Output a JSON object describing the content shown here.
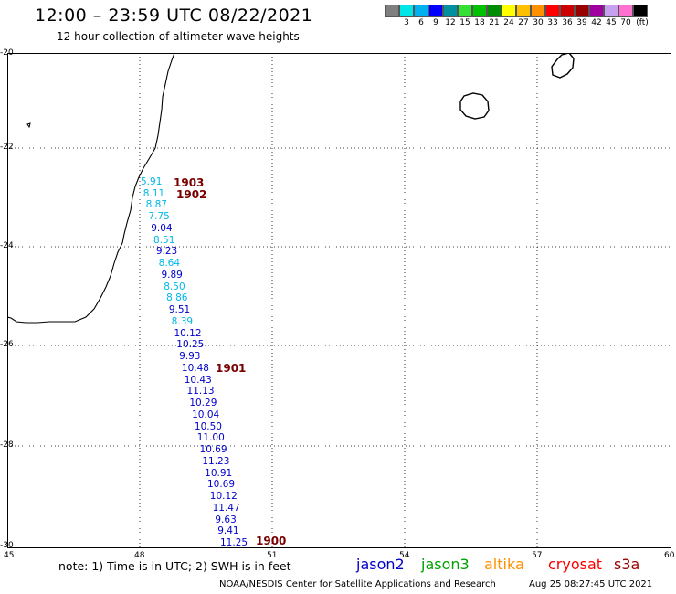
{
  "header": {
    "title": "12:00 – 23:59 UTC 08/22/2021",
    "subtitle": "12 hour collection of altimeter wave heights"
  },
  "legend": {
    "swatches": [
      {
        "color": "#7f7f7f",
        "label": ""
      },
      {
        "color": "#00e5e5",
        "label": "3"
      },
      {
        "color": "#00b0f0",
        "label": "6"
      },
      {
        "color": "#0000ff",
        "label": "9"
      },
      {
        "color": "#0090a0",
        "label": "12"
      },
      {
        "color": "#33e033",
        "label": "15"
      },
      {
        "color": "#00c000",
        "label": "18"
      },
      {
        "color": "#008c00",
        "label": "21"
      },
      {
        "color": "#ffff00",
        "label": "24"
      },
      {
        "color": "#ffc000",
        "label": "27"
      },
      {
        "color": "#ff9000",
        "label": "30"
      },
      {
        "color": "#ff0000",
        "label": "33"
      },
      {
        "color": "#cc0000",
        "label": "36"
      },
      {
        "color": "#990000",
        "label": "39"
      },
      {
        "color": "#a000a0",
        "label": "42"
      },
      {
        "color": "#c8a0f0",
        "label": "45"
      },
      {
        "color": "#ff70d0",
        "label": "70"
      },
      {
        "color": "#000000",
        "label": "(ft)"
      }
    ]
  },
  "axes": {
    "lat_ticks": [
      "-20",
      "-22",
      "-24",
      "-26",
      "-28",
      "-30"
    ],
    "lon_ticks": [
      "45",
      "48",
      "51",
      "54",
      "57",
      "60"
    ]
  },
  "colors": {
    "light": "#00b8e8",
    "dark": "#0000cc",
    "time": "#7a0000",
    "grid": "#000000"
  },
  "wave_heights": [
    {
      "value": "5.91",
      "tone": "light"
    },
    {
      "value": "8.11",
      "tone": "light"
    },
    {
      "value": "8.87",
      "tone": "light"
    },
    {
      "value": "7.75",
      "tone": "light"
    },
    {
      "value": "9.04",
      "tone": "dark"
    },
    {
      "value": "8.51",
      "tone": "light"
    },
    {
      "value": "9.23",
      "tone": "dark"
    },
    {
      "value": "8.64",
      "tone": "light"
    },
    {
      "value": "9.89",
      "tone": "dark"
    },
    {
      "value": "8.50",
      "tone": "light"
    },
    {
      "value": "8.86",
      "tone": "light"
    },
    {
      "value": "9.51",
      "tone": "dark"
    },
    {
      "value": "8.39",
      "tone": "light"
    },
    {
      "value": "10.12",
      "tone": "dark"
    },
    {
      "value": "10.25",
      "tone": "dark"
    },
    {
      "value": "9.93",
      "tone": "dark"
    },
    {
      "value": "10.48",
      "tone": "dark"
    },
    {
      "value": "10.43",
      "tone": "dark"
    },
    {
      "value": "11.13",
      "tone": "dark"
    },
    {
      "value": "10.29",
      "tone": "dark"
    },
    {
      "value": "10.04",
      "tone": "dark"
    },
    {
      "value": "10.50",
      "tone": "dark"
    },
    {
      "value": "11.00",
      "tone": "dark"
    },
    {
      "value": "10.69",
      "tone": "dark"
    },
    {
      "value": "11.23",
      "tone": "dark"
    },
    {
      "value": "10.91",
      "tone": "dark"
    },
    {
      "value": "10.69",
      "tone": "dark"
    },
    {
      "value": "10.12",
      "tone": "dark"
    },
    {
      "value": "11.47",
      "tone": "dark"
    },
    {
      "value": "9.63",
      "tone": "dark"
    },
    {
      "value": "9.41",
      "tone": "dark"
    },
    {
      "value": "11.25",
      "tone": "dark"
    }
  ],
  "time_labels": [
    "1903",
    "1902",
    "1901",
    "1900"
  ],
  "footer": {
    "note": "note: 1) Time is in UTC; 2) SWH is in feet",
    "satellites": [
      {
        "name": "jason2",
        "color": "#0000cc"
      },
      {
        "name": "jason3",
        "color": "#00a000"
      },
      {
        "name": "altika",
        "color": "#ff9000"
      },
      {
        "name": "cryosat",
        "color": "#ff0000"
      },
      {
        "name": "s3a",
        "color": "#990000"
      }
    ],
    "credit": "NOAA/NESDIS Center for Satellite Applications and Research",
    "date": "Aug 25 08:27:45 UTC 2021"
  }
}
